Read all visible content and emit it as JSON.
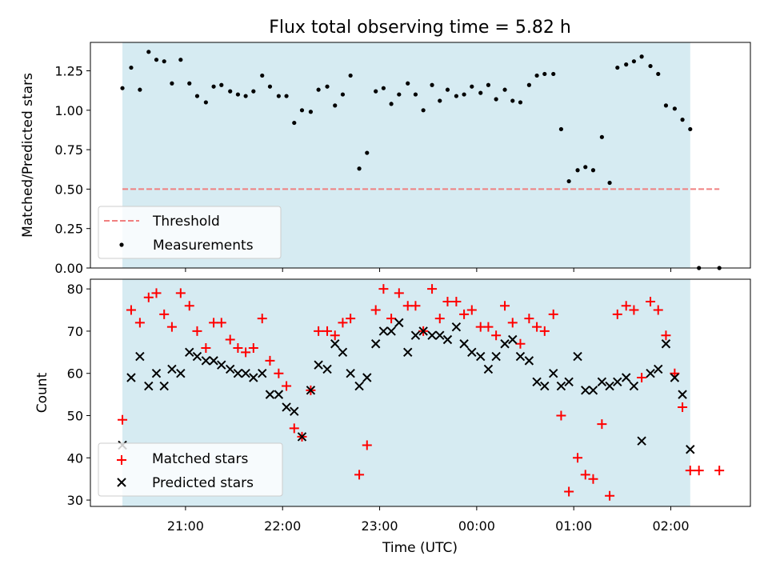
{
  "chart_data": [
    {
      "type": "scatter",
      "title": "Flux total observing time = 5.82 h",
      "xlabel": "",
      "ylabel": "Matched/Predicted stars",
      "ylim": [
        0,
        1.43
      ],
      "yticks": [
        "0.00",
        "0.25",
        "0.50",
        "0.75",
        "1.00",
        "1.25"
      ],
      "yticks_values": [
        0,
        0.25,
        0.5,
        0.75,
        1.0,
        1.25
      ],
      "x_unit": "hours relative to 00:00 UTC",
      "xlim": [
        -3.98,
        2.82
      ],
      "xticks_values": [
        -3,
        -2,
        -1,
        0,
        1,
        2
      ],
      "shaded_span": [
        -3.65,
        2.2
      ],
      "shade_color": "#add8e6",
      "legend_position": "lower-left",
      "threshold": {
        "name": "Threshold",
        "value": 0.5,
        "x_range": [
          -3.65,
          2.5
        ],
        "color": "#f08080"
      },
      "series": [
        {
          "name": "Measurements",
          "color": "#000000",
          "x": [
            -3.65,
            -3.56,
            -3.47,
            -3.38,
            -3.3,
            -3.22,
            -3.14,
            -3.05,
            -2.96,
            -2.88,
            -2.79,
            -2.71,
            -2.63,
            -2.54,
            -2.46,
            -2.38,
            -2.3,
            -2.21,
            -2.13,
            -2.04,
            -1.96,
            -1.88,
            -1.8,
            -1.71,
            -1.63,
            -1.54,
            -1.46,
            -1.38,
            -1.3,
            -1.21,
            -1.13,
            -1.04,
            -0.96,
            -0.88,
            -0.8,
            -0.71,
            -0.63,
            -0.55,
            -0.46,
            -0.38,
            -0.3,
            -0.21,
            -0.13,
            -0.05,
            0.04,
            0.12,
            0.2,
            0.29,
            0.37,
            0.45,
            0.54,
            0.62,
            0.7,
            0.79,
            0.87,
            0.95,
            1.04,
            1.12,
            1.2,
            1.29,
            1.37,
            1.45,
            1.54,
            1.62,
            1.7,
            1.79,
            1.87,
            1.95,
            2.04,
            2.12,
            2.2,
            2.29,
            2.5
          ],
          "y": [
            1.14,
            1.27,
            1.13,
            1.37,
            1.32,
            1.31,
            1.17,
            1.32,
            1.17,
            1.09,
            1.05,
            1.15,
            1.16,
            1.12,
            1.1,
            1.09,
            1.12,
            1.22,
            1.15,
            1.09,
            1.09,
            0.92,
            1.0,
            0.99,
            1.13,
            1.15,
            1.03,
            1.1,
            1.22,
            0.63,
            0.73,
            1.12,
            1.14,
            1.04,
            1.1,
            1.17,
            1.1,
            1.0,
            1.16,
            1.06,
            1.13,
            1.09,
            1.1,
            1.15,
            1.11,
            1.16,
            1.07,
            1.13,
            1.06,
            1.05,
            1.16,
            1.22,
            1.23,
            1.23,
            0.88,
            0.55,
            0.62,
            0.64,
            0.62,
            0.83,
            0.54,
            1.27,
            1.29,
            1.31,
            1.34,
            1.28,
            1.23,
            1.03,
            1.01,
            0.94,
            0.88,
            0.0,
            0.0
          ]
        }
      ]
    },
    {
      "type": "scatter",
      "xlabel": "Time (UTC)",
      "ylabel": "Count",
      "ylim": [
        28.5,
        82.3
      ],
      "yticks": [
        "30",
        "40",
        "50",
        "60",
        "70",
        "80"
      ],
      "yticks_values": [
        30,
        40,
        50,
        60,
        70,
        80
      ],
      "x_unit": "hours relative to 00:00 UTC",
      "xlim": [
        -3.98,
        2.82
      ],
      "xticks": [
        "21:00",
        "22:00",
        "23:00",
        "00:00",
        "01:00",
        "02:00"
      ],
      "xticks_values": [
        -3,
        -2,
        -1,
        0,
        1,
        2
      ],
      "shaded_span": [
        -3.65,
        2.2
      ],
      "shade_color": "#add8e6",
      "legend_position": "lower-left",
      "series": [
        {
          "name": "Matched stars",
          "marker": "plus",
          "color": "#ff0000",
          "x": [
            -3.65,
            -3.56,
            -3.47,
            -3.38,
            -3.3,
            -3.22,
            -3.14,
            -3.05,
            -2.96,
            -2.88,
            -2.79,
            -2.71,
            -2.63,
            -2.54,
            -2.46,
            -2.38,
            -2.3,
            -2.21,
            -2.13,
            -2.04,
            -1.96,
            -1.88,
            -1.8,
            -1.71,
            -1.63,
            -1.54,
            -1.46,
            -1.38,
            -1.3,
            -1.21,
            -1.13,
            -1.04,
            -0.96,
            -0.88,
            -0.8,
            -0.71,
            -0.63,
            -0.55,
            -0.46,
            -0.38,
            -0.3,
            -0.21,
            -0.13,
            -0.05,
            0.04,
            0.12,
            0.2,
            0.29,
            0.37,
            0.45,
            0.54,
            0.62,
            0.7,
            0.79,
            0.87,
            0.95,
            1.04,
            1.12,
            1.2,
            1.29,
            1.37,
            1.45,
            1.54,
            1.62,
            1.7,
            1.79,
            1.87,
            1.95,
            2.04,
            2.12,
            2.2,
            2.29,
            2.5
          ],
          "y": [
            49,
            75,
            72,
            78,
            79,
            74,
            71,
            79,
            76,
            70,
            66,
            72,
            72,
            68,
            66,
            65,
            66,
            73,
            63,
            60,
            57,
            47,
            45,
            56,
            70,
            70,
            69,
            72,
            73,
            36,
            43,
            75,
            80,
            73,
            79,
            76,
            76,
            70,
            80,
            73,
            77,
            77,
            74,
            75,
            71,
            71,
            69,
            76,
            72,
            67,
            73,
            71,
            70,
            74,
            50,
            32,
            40,
            36,
            35,
            48,
            31,
            74,
            76,
            75,
            59,
            77,
            75,
            69,
            60,
            52,
            37,
            37,
            37
          ]
        },
        {
          "name": "Predicted stars",
          "marker": "x",
          "color": "#000000",
          "x": [
            -3.65,
            -3.56,
            -3.47,
            -3.38,
            -3.3,
            -3.22,
            -3.14,
            -3.05,
            -2.96,
            -2.88,
            -2.79,
            -2.71,
            -2.63,
            -2.54,
            -2.46,
            -2.38,
            -2.3,
            -2.21,
            -2.13,
            -2.04,
            -1.96,
            -1.88,
            -1.8,
            -1.71,
            -1.63,
            -1.54,
            -1.46,
            -1.38,
            -1.3,
            -1.21,
            -1.13,
            -1.04,
            -0.96,
            -0.88,
            -0.8,
            -0.71,
            -0.63,
            -0.55,
            -0.46,
            -0.38,
            -0.3,
            -0.21,
            -0.13,
            -0.05,
            0.04,
            0.12,
            0.2,
            0.29,
            0.37,
            0.45,
            0.54,
            0.62,
            0.7,
            0.79,
            0.87,
            0.95,
            1.04,
            1.12,
            1.2,
            1.29,
            1.37,
            1.45,
            1.54,
            1.62,
            1.7,
            1.79,
            1.87,
            1.95,
            2.04,
            2.12,
            2.2
          ],
          "y": [
            43,
            59,
            64,
            57,
            60,
            57,
            61,
            60,
            65,
            64,
            63,
            63,
            62,
            61,
            60,
            60,
            59,
            60,
            55,
            55,
            52,
            51,
            45,
            56,
            62,
            61,
            67,
            65,
            60,
            57,
            59,
            67,
            70,
            70,
            72,
            65,
            69,
            70,
            69,
            69,
            68,
            71,
            67,
            65,
            64,
            61,
            64,
            67,
            68,
            64,
            63,
            58,
            57,
            60,
            57,
            58,
            64,
            56,
            56,
            58,
            57,
            58,
            59,
            57,
            44,
            60,
            61,
            67,
            59,
            55,
            42
          ]
        }
      ]
    }
  ]
}
